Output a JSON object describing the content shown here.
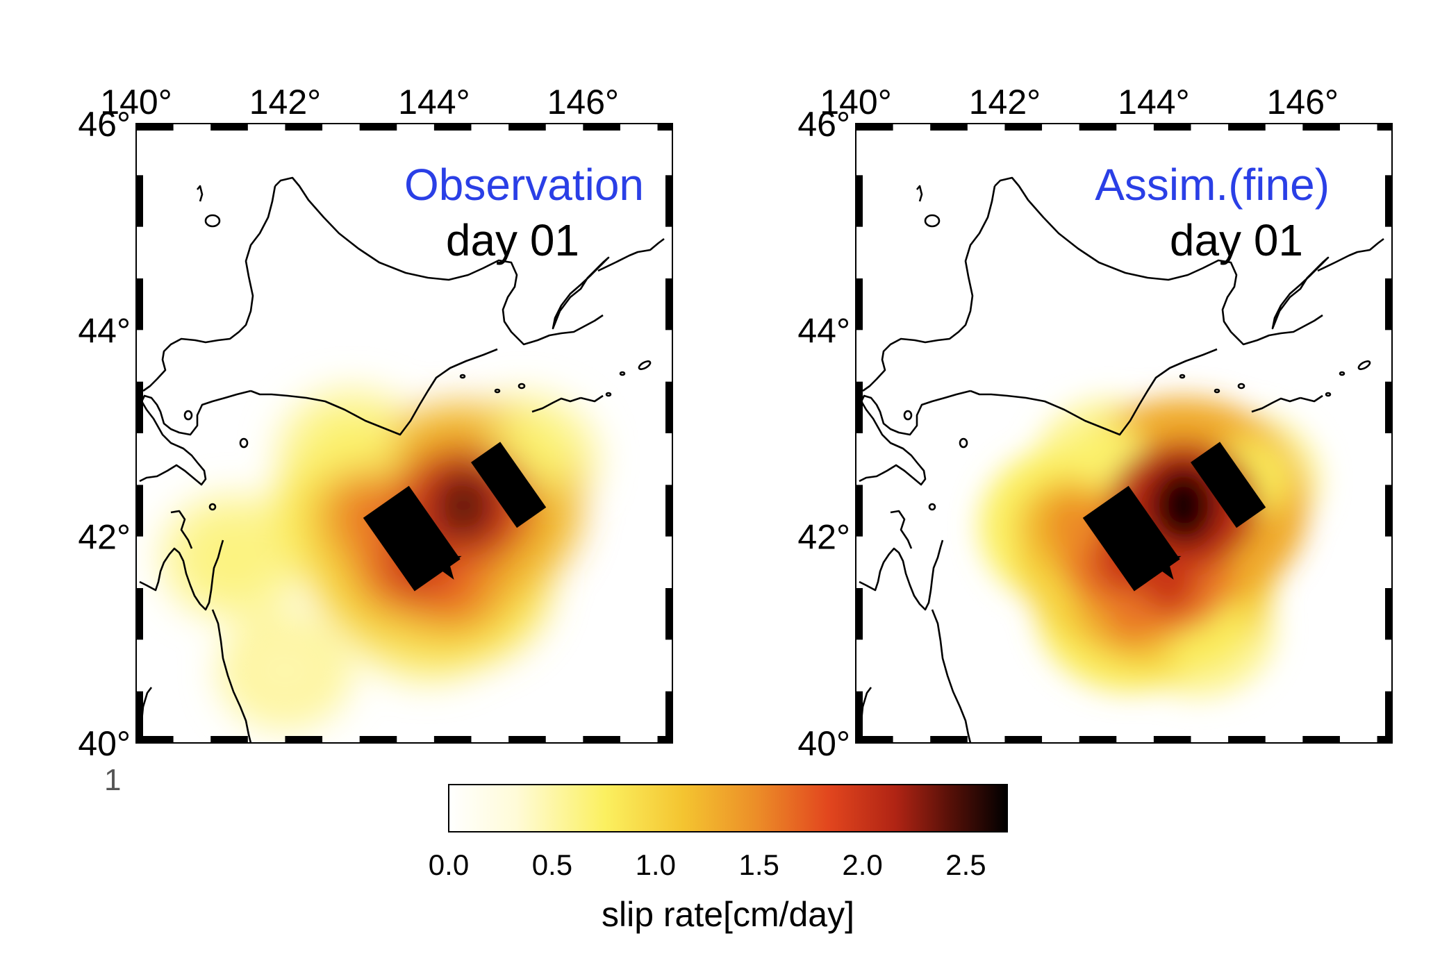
{
  "panels": [
    {
      "id": "observation",
      "title": "Observation",
      "subtitle": "day 01",
      "hotspots": [
        {
          "lon": 143.1,
          "lat": 42.2,
          "value": 1.6
        },
        {
          "lon": 143.75,
          "lat": 41.75,
          "value": 2.0
        },
        {
          "lon": 144.4,
          "lat": 42.3,
          "value": 2.4
        },
        {
          "lon": 144.25,
          "lat": 41.55,
          "value": 1.7
        },
        {
          "lon": 143.9,
          "lat": 41.3,
          "value": 1.2
        },
        {
          "lon": 142.9,
          "lat": 42.8,
          "value": 0.9
        },
        {
          "lon": 145.2,
          "lat": 42.75,
          "value": 0.9
        },
        {
          "lon": 141.3,
          "lat": 41.8,
          "value": 0.8
        },
        {
          "lon": 142.0,
          "lat": 40.7,
          "value": 0.6
        }
      ]
    },
    {
      "id": "assim-fine",
      "title": "Assim.(fine)",
      "subtitle": "day 01",
      "hotspots": [
        {
          "lon": 142.9,
          "lat": 42.1,
          "value": 1.5
        },
        {
          "lon": 143.6,
          "lat": 41.8,
          "value": 2.0
        },
        {
          "lon": 144.4,
          "lat": 42.3,
          "value": 2.6
        },
        {
          "lon": 144.2,
          "lat": 41.6,
          "value": 2.0
        },
        {
          "lon": 143.7,
          "lat": 41.3,
          "value": 1.6
        },
        {
          "lon": 143.4,
          "lat": 42.7,
          "value": 0.9
        },
        {
          "lon": 145.2,
          "lat": 42.55,
          "value": 1.0
        },
        {
          "lon": 144.6,
          "lat": 41.1,
          "value": 1.0
        }
      ]
    }
  ],
  "axes": {
    "lon_ticks": [
      "140°",
      "142°",
      "144°",
      "146°"
    ],
    "lat_ticks": [
      "46°",
      "44°",
      "42°",
      "40°"
    ],
    "lon_range": [
      140,
      147.2
    ],
    "lat_range": [
      40,
      46
    ]
  },
  "markers": {
    "epicenter": {
      "lon": 144.1,
      "lat": 41.75,
      "symbol": "star"
    },
    "fault_patches": [
      {
        "lon": 143.7,
        "lat": 41.98,
        "size_lon": 0.75,
        "size_lat": 0.56,
        "rotation": -35
      },
      {
        "lon": 145.0,
        "lat": 42.5,
        "size_lon": 0.48,
        "size_lat": 0.5,
        "rotation": -35
      }
    ]
  },
  "colorbar": {
    "label": "slip rate[cm/day]",
    "min": 0.0,
    "max": 2.7,
    "ticks": [
      "0.0",
      "0.5",
      "1.0",
      "1.5",
      "2.0",
      "2.5"
    ],
    "colors": [
      "#ffffff",
      "#fffbd8",
      "#fbf060",
      "#f4c430",
      "#ec8e28",
      "#e2461e",
      "#b02414",
      "#551008",
      "#000000"
    ]
  },
  "stray_label": "1"
}
